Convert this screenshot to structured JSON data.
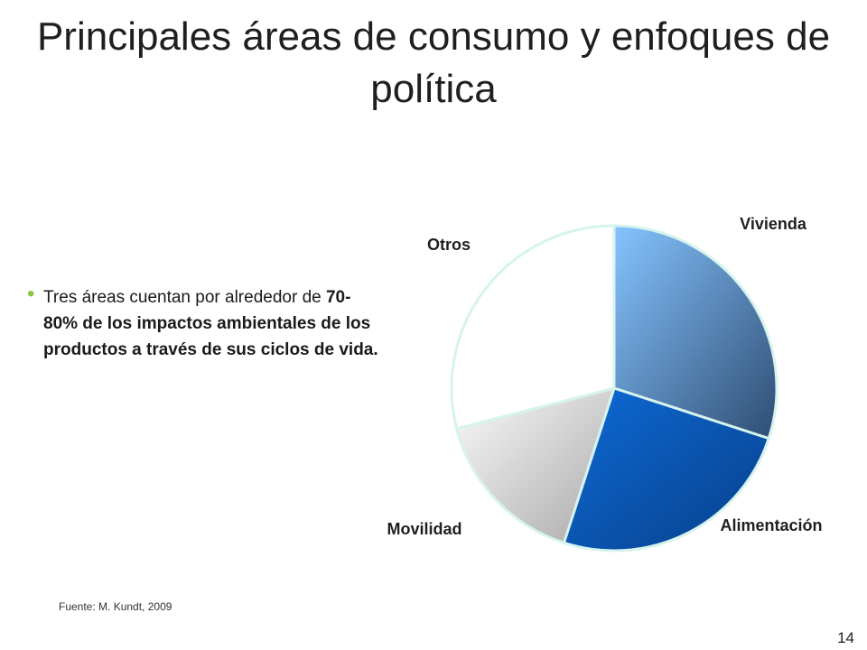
{
  "slide": {
    "title": "Principales áreas de consumo y enfoques de política",
    "bullet": {
      "lead": "Tres áreas cuentan por alrededor de ",
      "emphasis": "70-80% de los impactos ambientales de los productos a través de sus ciclos de vida."
    },
    "source": "Fuente: M. Kundt, 2009",
    "page_number": "14"
  },
  "chart_data": {
    "type": "pie",
    "title": "",
    "start_angle_deg": 0,
    "direction": "clockwise",
    "slices": [
      {
        "label": "Vivienda",
        "value": 30,
        "color": "#5b86b8"
      },
      {
        "label": "Alimentación",
        "value": 25,
        "color": "#0a56b0"
      },
      {
        "label": "Movilidad",
        "value": 16,
        "color": "#c8c8c8"
      },
      {
        "label": "Otros",
        "value": 29,
        "color": "#ffffff"
      }
    ]
  }
}
